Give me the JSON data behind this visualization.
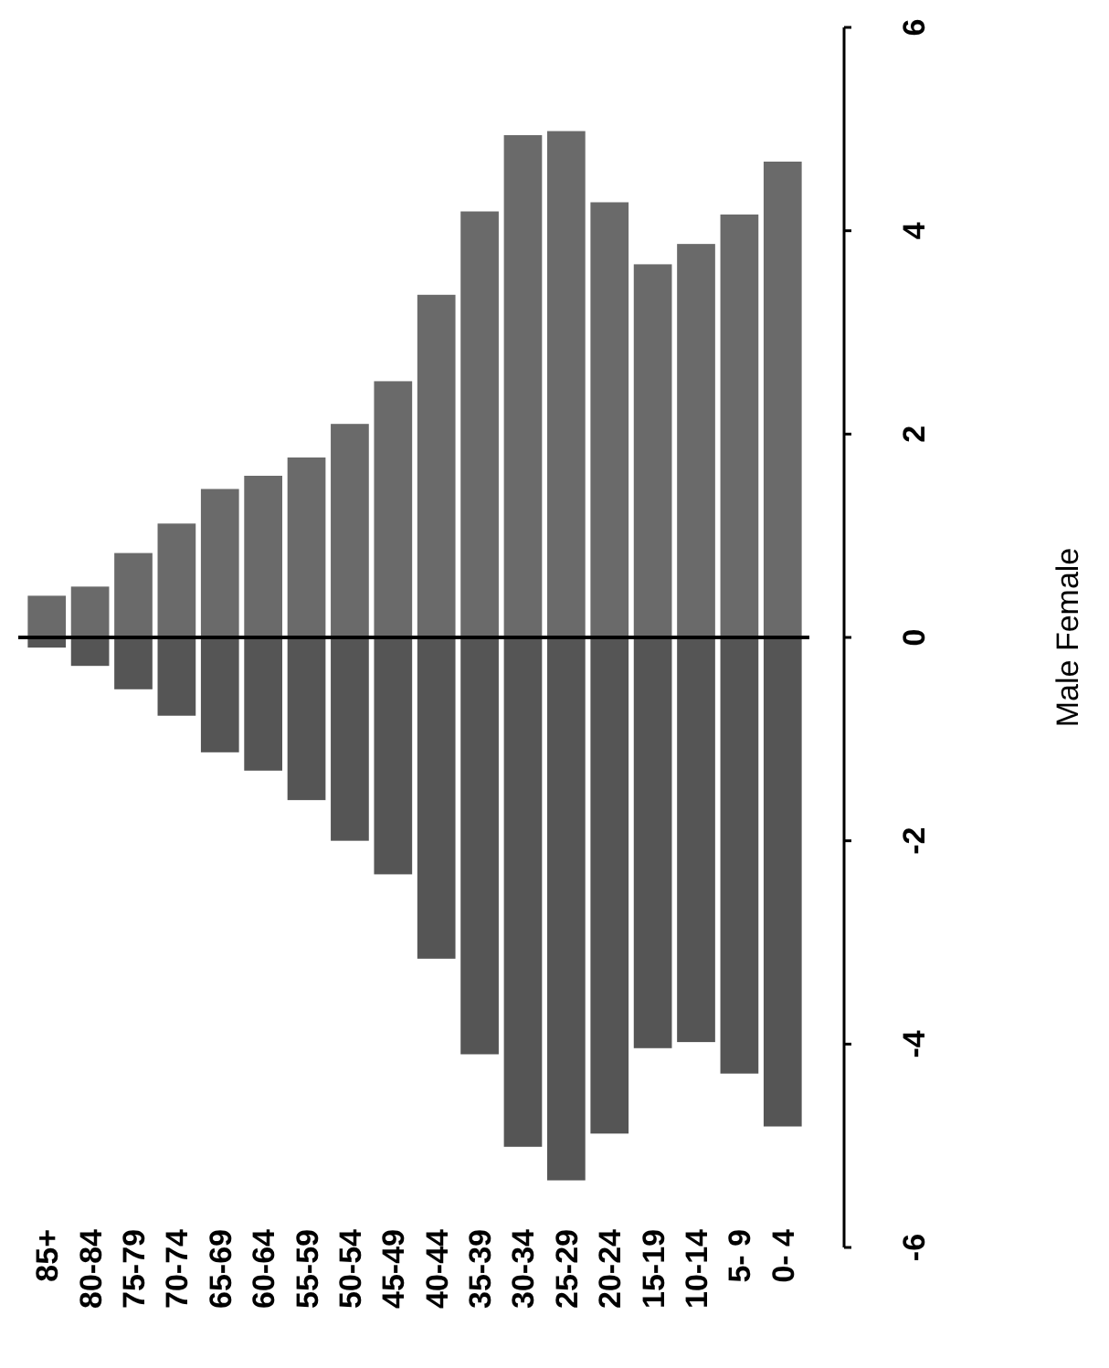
{
  "chart_data": {
    "type": "bar",
    "stacked": true,
    "ylabel": "Male Female",
    "categories": [
      "85+",
      "80-84",
      "75-79",
      "70-74",
      "65-69",
      "60-64",
      "55-59",
      "50-54",
      "45-49",
      "40-44",
      "35-39",
      "30-34",
      "25-29",
      "20-24",
      "15-19",
      "10-14",
      "5- 9",
      "0- 4"
    ],
    "series": [
      {
        "color": "#555555",
        "values": [
          -0.1,
          -0.28,
          -0.51,
          -0.77,
          -1.13,
          -1.31,
          -1.6,
          -2.0,
          -2.33,
          -3.16,
          -4.1,
          -5.01,
          -5.34,
          -4.88,
          -4.04,
          -3.98,
          -4.29,
          -4.81
        ]
      },
      {
        "color": "#6a6a6a",
        "values": [
          0.41,
          0.5,
          0.83,
          1.12,
          1.46,
          1.59,
          1.77,
          2.1,
          2.52,
          3.37,
          4.19,
          4.94,
          4.98,
          4.28,
          3.67,
          3.87,
          4.16,
          4.68
        ]
      }
    ],
    "ylim": [
      -6,
      6
    ],
    "yticks": [
      -6,
      -4,
      -2,
      0,
      2,
      4,
      6
    ]
  }
}
